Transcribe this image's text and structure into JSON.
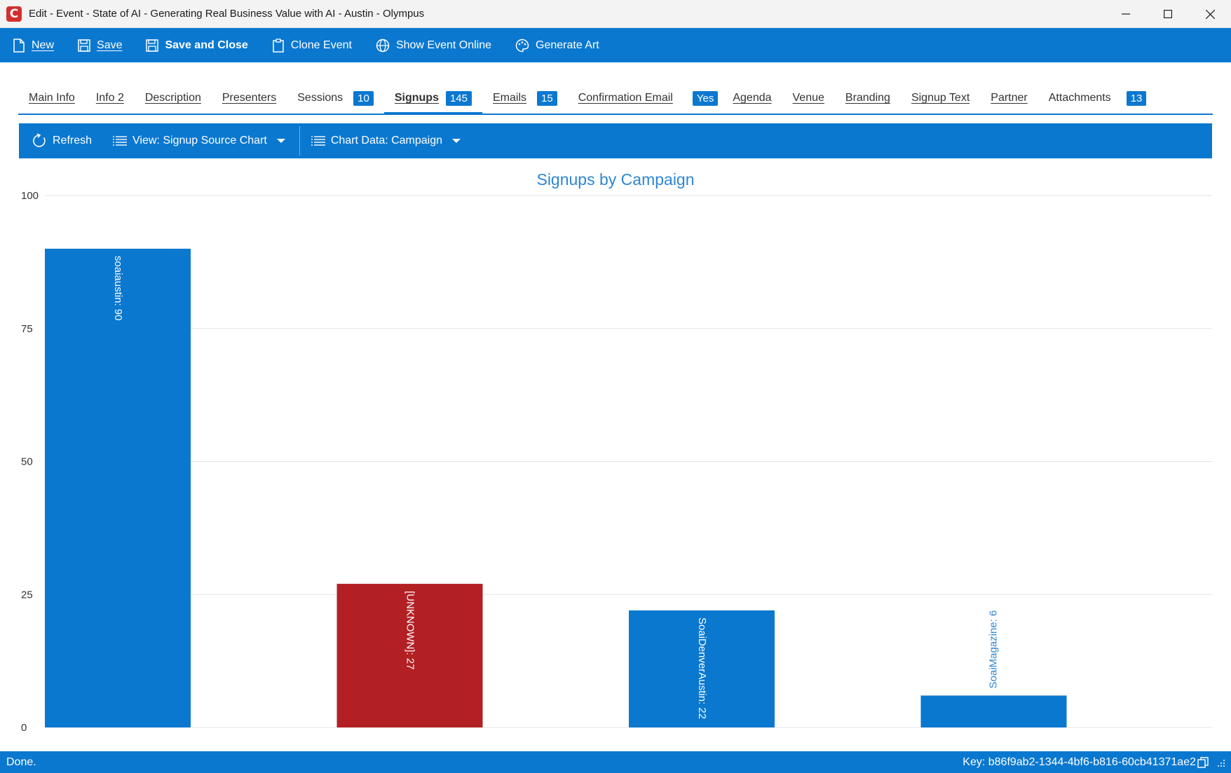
{
  "window": {
    "title": "Edit - Event - State of AI - Generating Real Business Value with AI - Austin - Olympus",
    "logo_letter": "C"
  },
  "toolbar": {
    "new_label": "New",
    "save_label": "Save",
    "save_close_label": "Save and Close",
    "clone_label": "Clone Event",
    "show_online_label": "Show Event Online",
    "generate_art_label": "Generate Art"
  },
  "tabs": [
    {
      "label": "Main Info",
      "badge": ""
    },
    {
      "label": "Info 2",
      "badge": ""
    },
    {
      "label": "Description",
      "badge": ""
    },
    {
      "label": "Presenters",
      "badge": ""
    },
    {
      "label": "Sessions",
      "badge": "10"
    },
    {
      "label": "Signups",
      "badge": "145",
      "active": true
    },
    {
      "label": "Emails",
      "badge": "15"
    },
    {
      "label": "Confirmation Email",
      "badge": "Yes"
    },
    {
      "label": "Agenda",
      "badge": ""
    },
    {
      "label": "Venue",
      "badge": ""
    },
    {
      "label": "Branding",
      "badge": ""
    },
    {
      "label": "Signup Text",
      "badge": ""
    },
    {
      "label": "Partner",
      "badge": ""
    },
    {
      "label": "Attachments",
      "badge": "13"
    }
  ],
  "chart_toolbar": {
    "refresh_label": "Refresh",
    "view_label": "View: Signup Source Chart",
    "chart_data_label": "Chart Data: Campaign"
  },
  "chart_data": {
    "type": "bar",
    "title": "Signups by Campaign",
    "categories": [
      "soaiaustin",
      "[UNKNOWN]",
      "SoaiDenverAustin",
      "SoaiMagazine"
    ],
    "values": [
      90,
      27,
      22,
      6
    ],
    "data_labels": [
      "soaiaustin: 90",
      "[UNKNOWN]: 27",
      "SoaiDenverAustin: 22",
      "SoaiMagazine: 6"
    ],
    "bar_colors": [
      "#0b78d0",
      "#b22024",
      "#0b78d0",
      "#0b78d0"
    ],
    "ylim": [
      0,
      100
    ],
    "yticks": [
      0,
      25,
      50,
      75,
      100
    ],
    "xlabel": "",
    "ylabel": "",
    "grid": true,
    "legend": "none"
  },
  "status": {
    "left_text": "Done.",
    "key_text": "Key: b86f9ab2-1344-4bf6-b816-60cb41371ae2"
  },
  "colors": {
    "accent": "#0b78d0",
    "title_blue": "#2e86d3",
    "unknown_red": "#b22024"
  }
}
